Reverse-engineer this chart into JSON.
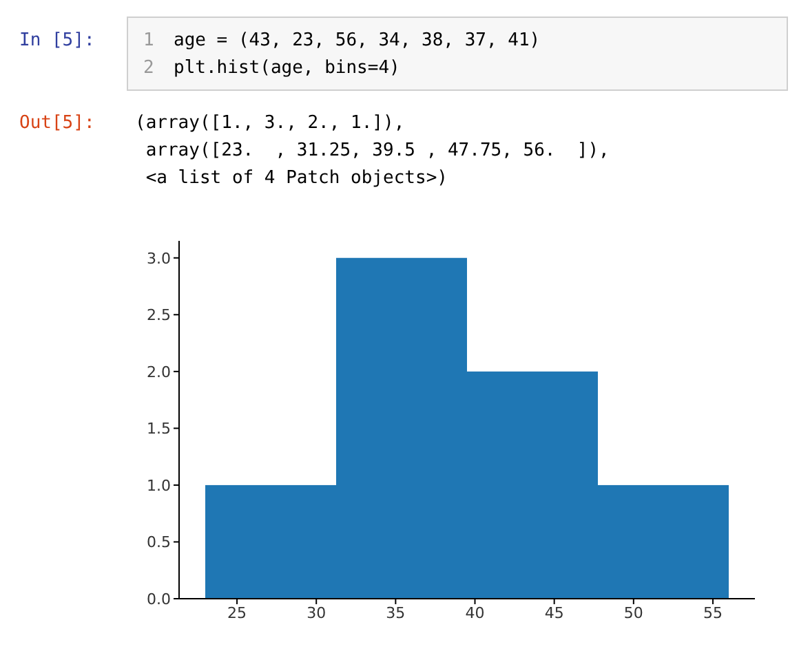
{
  "chart_data": {
    "type": "histogram",
    "annotations": [
      "In [5]:",
      "1",
      "age = (43, 23, 56, 34, 38, 37, 41)",
      "2",
      "plt.hist(age, bins=4)",
      "Out[5]:",
      "(array([1., 3., 2., 1.]),",
      " array([23.  , 31.25, 39.5 , 47.75, 56.  ]),",
      " <a list of 4 Patch objects>)"
    ],
    "bins": [
      23,
      31.25,
      39.5,
      47.75,
      56
    ],
    "values": [
      1,
      3,
      2,
      1
    ],
    "color": "#1f77b4",
    "xlim": [
      21.35,
      57.65
    ],
    "xticks": [
      25,
      30,
      35,
      40,
      45,
      50,
      55
    ],
    "ylim": [
      0,
      3.15
    ],
    "yticks": [
      {
        "value": 0,
        "label": "0.0"
      },
      {
        "value": 0.5,
        "label": "0.5"
      },
      {
        "value": 1,
        "label": "1.0"
      },
      {
        "value": 1.5,
        "label": "1.5"
      },
      {
        "value": 2,
        "label": "2.0"
      },
      {
        "value": 2.5,
        "label": "2.5"
      },
      {
        "value": 3,
        "label": "3.0"
      }
    ],
    "grid": false
  }
}
